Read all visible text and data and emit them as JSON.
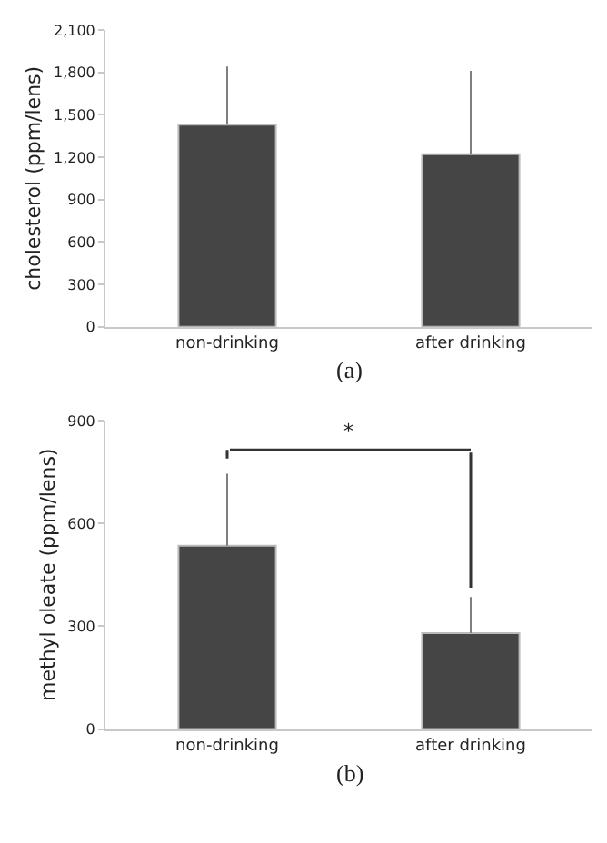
{
  "chart_data": [
    {
      "type": "bar",
      "ylabel": "cholesterol (ppm/lens)",
      "categories": [
        "non-drinking",
        "after drinking"
      ],
      "values": [
        1430,
        1220
      ],
      "errors": [
        [
          1430,
          1840
        ],
        [
          1220,
          1810
        ]
      ],
      "color": "#454545",
      "ylim": [
        0,
        2100
      ],
      "yticks": [
        0,
        {
          "value": 300,
          "label": "300"
        },
        {
          "value": 600,
          "label": "600"
        },
        {
          "value": 900,
          "label": "900"
        },
        {
          "value": 1200,
          "label": "1,200"
        },
        {
          "value": 1500,
          "label": "1,500"
        },
        {
          "value": 1800,
          "label": "1,800"
        },
        {
          "value": 2100,
          "label": "2,100"
        }
      ],
      "annotations": [
        "(a)"
      ]
    },
    {
      "type": "bar",
      "ylabel": "methyl oleate (ppm/lens)",
      "categories": [
        "non-drinking",
        "after drinking"
      ],
      "values": [
        535,
        280
      ],
      "errors": [
        [
          535,
          745
        ],
        [
          280,
          385
        ]
      ],
      "color": "#454545",
      "ylim": [
        0,
        900
      ],
      "yticks": [
        0,
        300,
        600,
        900
      ],
      "annotations": [
        "(b)",
        "*"
      ]
    }
  ]
}
